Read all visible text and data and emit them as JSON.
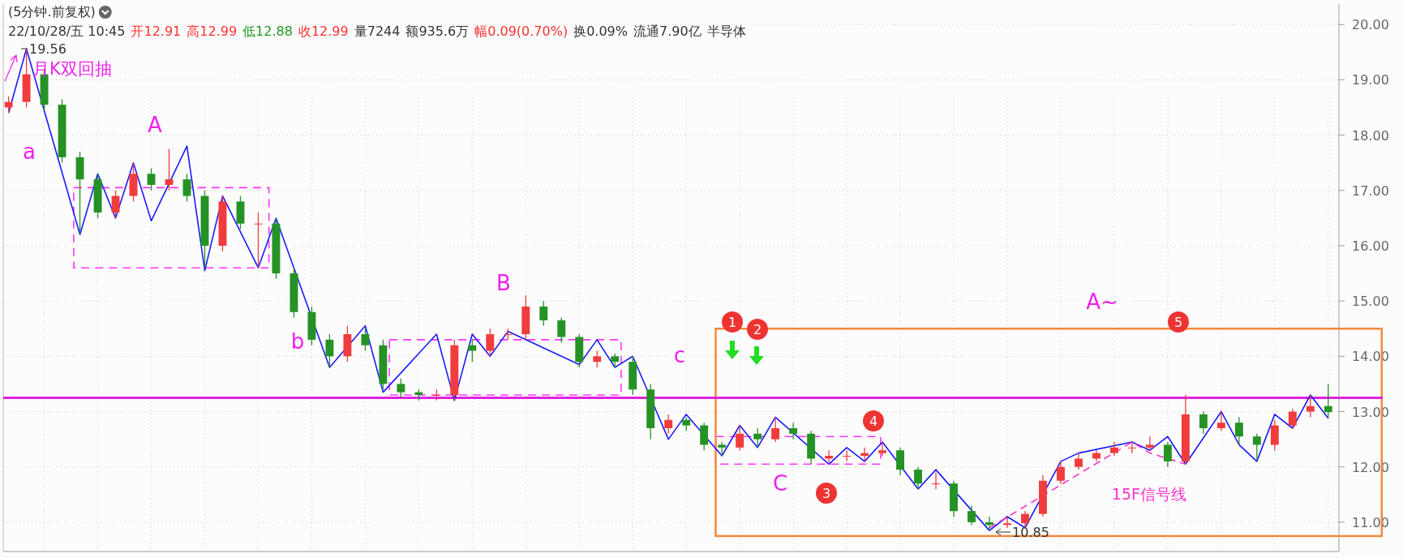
{
  "chart_data": {
    "type": "candlestick",
    "title": "(5分钟.前复权)",
    "categories": [
      null,
      null,
      null,
      null,
      null,
      null,
      null,
      null,
      null,
      null,
      null,
      null,
      null,
      null,
      null,
      null,
      null,
      null,
      null,
      null,
      null,
      null,
      null,
      null,
      null,
      null,
      null,
      null,
      null,
      null,
      null,
      null,
      null,
      null,
      null,
      null,
      null,
      null,
      null,
      null,
      null,
      null,
      null,
      null,
      null,
      null,
      null,
      null,
      null,
      null,
      null,
      null,
      null,
      null,
      null,
      null,
      null,
      null,
      null,
      null,
      null,
      null,
      null,
      null,
      null,
      null,
      null,
      null,
      null,
      null,
      null,
      null,
      null,
      null,
      null
    ],
    "ylim": [
      10.47,
      20.37
    ],
    "yticks": [
      {
        "value": 11,
        "label": "11.00"
      },
      {
        "value": 12,
        "label": "12.00"
      },
      {
        "value": 13,
        "label": "13.00"
      },
      {
        "value": 14,
        "label": "14.00"
      },
      {
        "value": 15,
        "label": "15.00"
      },
      {
        "value": 16,
        "label": "16.00"
      },
      {
        "value": 17,
        "label": "17.00"
      },
      {
        "value": 18,
        "label": "18.00"
      },
      {
        "value": 19,
        "label": "19.00"
      },
      {
        "value": 20,
        "label": "20.00"
      }
    ],
    "grid": true,
    "legend": false,
    "series": [
      {
        "ohlc": [
          [
            18.5,
            18.7,
            18.4,
            18.6
          ],
          [
            18.6,
            19.56,
            18.5,
            19.1
          ],
          [
            19.1,
            19.2,
            18.45,
            18.55
          ],
          [
            18.55,
            18.65,
            17.5,
            17.6
          ],
          [
            17.6,
            17.7,
            16.2,
            17.2
          ],
          [
            17.2,
            17.3,
            16.5,
            16.6
          ],
          [
            16.6,
            17.0,
            16.5,
            16.9
          ],
          [
            16.9,
            17.5,
            16.8,
            17.3
          ],
          [
            17.3,
            17.4,
            17.0,
            17.1
          ],
          [
            17.1,
            17.75,
            17.0,
            17.2
          ],
          [
            17.2,
            17.3,
            16.8,
            16.9
          ],
          [
            16.9,
            17.0,
            15.6,
            16.0
          ],
          [
            16.0,
            16.9,
            15.9,
            16.8
          ],
          [
            16.8,
            16.9,
            16.3,
            16.4
          ],
          [
            16.4,
            16.6,
            15.6,
            16.4
          ],
          [
            16.4,
            16.5,
            15.4,
            15.5
          ],
          [
            15.5,
            15.6,
            14.7,
            14.8
          ],
          [
            14.8,
            14.9,
            14.2,
            14.3
          ],
          [
            14.3,
            14.4,
            13.8,
            14.0
          ],
          [
            14.0,
            14.55,
            13.9,
            14.4
          ],
          [
            14.4,
            14.5,
            14.1,
            14.2
          ],
          [
            14.2,
            14.3,
            13.4,
            13.5
          ],
          [
            13.5,
            13.6,
            13.25,
            13.35
          ],
          [
            13.35,
            13.4,
            13.2,
            13.3
          ],
          [
            13.3,
            13.4,
            13.2,
            13.3
          ],
          [
            13.3,
            14.3,
            13.2,
            14.2
          ],
          [
            14.2,
            14.3,
            13.9,
            14.1
          ],
          [
            14.1,
            14.5,
            14.0,
            14.4
          ],
          [
            14.4,
            14.5,
            14.3,
            14.4
          ],
          [
            14.4,
            15.1,
            14.3,
            14.9
          ],
          [
            14.9,
            15.0,
            14.55,
            14.65
          ],
          [
            14.65,
            14.7,
            14.25,
            14.35
          ],
          [
            14.35,
            14.4,
            13.8,
            13.9
          ],
          [
            13.9,
            14.1,
            13.8,
            14.0
          ],
          [
            14.0,
            14.05,
            13.8,
            13.9
          ],
          [
            13.9,
            14.0,
            13.3,
            13.4
          ],
          [
            13.4,
            13.5,
            12.5,
            12.7
          ],
          [
            12.7,
            12.95,
            12.6,
            12.85
          ],
          [
            12.85,
            12.9,
            12.65,
            12.75
          ],
          [
            12.75,
            12.8,
            12.3,
            12.4
          ],
          [
            12.4,
            12.45,
            12.2,
            12.35
          ],
          [
            12.35,
            12.75,
            12.3,
            12.6
          ],
          [
            12.6,
            12.7,
            12.35,
            12.5
          ],
          [
            12.5,
            12.9,
            12.45,
            12.7
          ],
          [
            12.7,
            12.8,
            12.5,
            12.6
          ],
          [
            12.6,
            12.65,
            12.05,
            12.15
          ],
          [
            12.15,
            12.3,
            12.05,
            12.2
          ],
          [
            12.2,
            12.3,
            12.1,
            12.2
          ],
          [
            12.2,
            12.35,
            12.1,
            12.25
          ],
          [
            12.25,
            12.45,
            12.2,
            12.3
          ],
          [
            12.3,
            12.35,
            11.85,
            11.95
          ],
          [
            11.95,
            12.0,
            11.6,
            11.7
          ],
          [
            11.7,
            11.9,
            11.6,
            11.7
          ],
          [
            11.7,
            11.75,
            11.1,
            11.2
          ],
          [
            11.2,
            11.3,
            10.95,
            11.0
          ],
          [
            11.0,
            11.1,
            10.85,
            10.95
          ],
          [
            10.95,
            11.1,
            10.9,
            10.98
          ],
          [
            10.98,
            11.2,
            10.9,
            11.15
          ],
          [
            11.15,
            11.85,
            11.1,
            11.75
          ],
          [
            11.75,
            12.1,
            11.7,
            12.0
          ],
          [
            12.0,
            12.25,
            11.95,
            12.15
          ],
          [
            12.15,
            12.3,
            12.1,
            12.25
          ],
          [
            12.25,
            12.45,
            12.2,
            12.35
          ],
          [
            12.35,
            12.45,
            12.25,
            12.35
          ],
          [
            12.35,
            12.55,
            12.3,
            12.4
          ],
          [
            12.4,
            12.45,
            12.0,
            12.1
          ],
          [
            12.1,
            13.3,
            12.05,
            12.95
          ],
          [
            12.95,
            13.0,
            12.6,
            12.7
          ],
          [
            12.7,
            13.0,
            12.65,
            12.8
          ],
          [
            12.8,
            12.9,
            12.4,
            12.55
          ],
          [
            12.55,
            12.6,
            12.1,
            12.4
          ],
          [
            12.4,
            12.85,
            12.3,
            12.75
          ],
          [
            12.75,
            13.05,
            12.7,
            13.0
          ],
          [
            13.0,
            13.3,
            12.9,
            13.1
          ],
          [
            13.1,
            13.5,
            12.88,
            12.99
          ]
        ]
      },
      {
        "type": "line",
        "color": "#1a1aff",
        "values": [
          18.4,
          19.56,
          null,
          null,
          16.2,
          17.3,
          16.5,
          17.5,
          16.45,
          null,
          17.8,
          15.55,
          16.9,
          null,
          15.6,
          16.5,
          null,
          null,
          13.8,
          null,
          14.55,
          13.35,
          null,
          null,
          14.4,
          13.2,
          14.4,
          14.0,
          14.45,
          null,
          null,
          null,
          13.85,
          14.3,
          13.8,
          14.0,
          null,
          12.5,
          12.95,
          null,
          12.2,
          12.75,
          12.35,
          12.9,
          null,
          null,
          12.05,
          12.35,
          12.1,
          12.45,
          null,
          11.6,
          11.95,
          null,
          null,
          10.85,
          11.1,
          10.9,
          null,
          12.1,
          12.25,
          null,
          null,
          12.45,
          12.3,
          12.55,
          12.05,
          null,
          13.0,
          12.4,
          12.1,
          12.95,
          12.7,
          13.3,
          12.88
        ]
      },
      {
        "type": "line",
        "name": "15F信号线",
        "color": "#ff33cc",
        "line_style": "dashed",
        "values": [
          null,
          null,
          null,
          null,
          null,
          null,
          null,
          null,
          null,
          null,
          null,
          null,
          null,
          null,
          null,
          null,
          null,
          null,
          null,
          null,
          null,
          null,
          null,
          null,
          null,
          null,
          null,
          null,
          null,
          null,
          null,
          null,
          null,
          null,
          null,
          null,
          null,
          null,
          null,
          null,
          null,
          null,
          null,
          null,
          null,
          null,
          null,
          null,
          null,
          null,
          null,
          null,
          null,
          null,
          null,
          10.9,
          null,
          null,
          null,
          null,
          null,
          null,
          null,
          12.45,
          12.25,
          null,
          12.05,
          null,
          null,
          null,
          null,
          null,
          null,
          null,
          null
        ]
      }
    ],
    "ref_lines": [
      {
        "axis": "y",
        "value": 13.25,
        "color": "#e020e0"
      }
    ],
    "annotations": [
      "22/10/28/五 10:45",
      "开12.91",
      "高12.99",
      "低12.88",
      "收12.99",
      "量7244",
      "额935.6万",
      "幅0.09(0.70%)",
      "换0.09%",
      "流通7.90亿",
      "半导体",
      "a",
      "A",
      "b",
      "B",
      "c",
      "C",
      "A~",
      "月K双回抽",
      "19.56",
      "10.85",
      "1",
      "2",
      "3",
      "4",
      "5"
    ]
  }
}
